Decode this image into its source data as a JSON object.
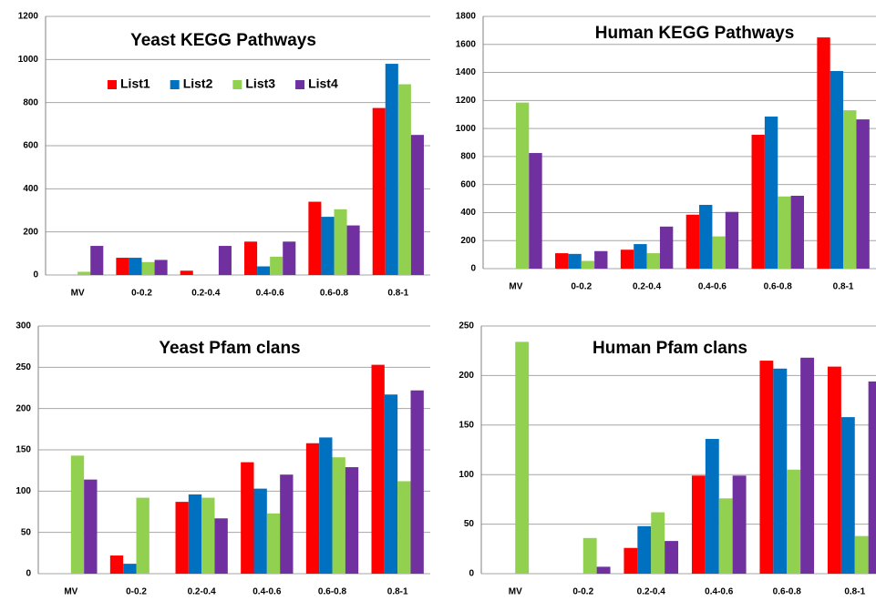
{
  "chart_data": [
    {
      "type": "bar",
      "title": "Yeast KEGG Pathways",
      "legend": "top",
      "categories": [
        "MV",
        "0-0.2",
        "0.2-0.4",
        "0.4-0.6",
        "0.6-0.8",
        "0.8-1"
      ],
      "series": [
        {
          "name": "List1",
          "color": "#ff0000",
          "values": [
            0,
            80,
            20,
            155,
            340,
            775
          ]
        },
        {
          "name": "List2",
          "color": "#0070c0",
          "values": [
            0,
            80,
            0,
            40,
            270,
            980
          ]
        },
        {
          "name": "List3",
          "color": "#92d050",
          "values": [
            15,
            60,
            0,
            85,
            305,
            885
          ]
        },
        {
          "name": "List4",
          "color": "#7030a0",
          "values": [
            135,
            70,
            135,
            155,
            230,
            650
          ]
        }
      ],
      "ylim": [
        0,
        1200
      ],
      "yticks": [
        0,
        200,
        400,
        600,
        800,
        1000,
        1200
      ],
      "grid": true
    },
    {
      "type": "bar",
      "title": "Human KEGG Pathways",
      "categories": [
        "MV",
        "0-0.2",
        "0.2-0.4",
        "0.4-0.6",
        "0.6-0.8",
        "0.8-1"
      ],
      "series": [
        {
          "color": "#ff0000",
          "values": [
            0,
            110,
            135,
            385,
            955,
            1650
          ]
        },
        {
          "color": "#0070c0",
          "values": [
            0,
            105,
            175,
            455,
            1085,
            1410
          ]
        },
        {
          "color": "#92d050",
          "values": [
            1185,
            55,
            110,
            230,
            515,
            1130
          ]
        },
        {
          "color": "#7030a0",
          "values": [
            825,
            125,
            300,
            405,
            520,
            1065
          ]
        }
      ],
      "ylim": [
        0,
        1800
      ],
      "yticks": [
        0,
        200,
        400,
        600,
        800,
        1000,
        1200,
        1400,
        1600,
        1800
      ],
      "grid": true
    },
    {
      "type": "bar",
      "title": "Yeast Pfam clans",
      "categories": [
        "MV",
        "0-0.2",
        "0.2-0.4",
        "0.4-0.6",
        "0.6-0.8",
        "0.8-1"
      ],
      "series": [
        {
          "color": "#ff0000",
          "values": [
            0,
            22,
            87,
            135,
            158,
            253
          ]
        },
        {
          "color": "#0070c0",
          "values": [
            0,
            12,
            96,
            103,
            165,
            217
          ]
        },
        {
          "color": "#92d050",
          "values": [
            143,
            92,
            92,
            73,
            141,
            112
          ]
        },
        {
          "color": "#7030a0",
          "values": [
            114,
            0,
            67,
            120,
            129,
            222
          ]
        }
      ],
      "ylim": [
        0,
        300
      ],
      "yticks": [
        0,
        50,
        100,
        150,
        200,
        250,
        300
      ],
      "grid": true
    },
    {
      "type": "bar",
      "title": "Human  Pfam clans",
      "categories": [
        "MV",
        "0-0.2",
        "0.2-0.4",
        "0.4-0.6",
        "0.6-0.8",
        "0.8-1"
      ],
      "series": [
        {
          "color": "#ff0000",
          "values": [
            0,
            0,
            26,
            99,
            215,
            209
          ]
        },
        {
          "color": "#0070c0",
          "values": [
            0,
            0,
            48,
            136,
            207,
            158
          ]
        },
        {
          "color": "#92d050",
          "values": [
            234,
            36,
            62,
            76,
            105,
            38
          ]
        },
        {
          "color": "#7030a0",
          "values": [
            0,
            7,
            33,
            99,
            218,
            194
          ]
        }
      ],
      "ylim": [
        0,
        250
      ],
      "yticks": [
        0,
        50,
        100,
        150,
        200,
        250
      ],
      "grid": true
    }
  ]
}
